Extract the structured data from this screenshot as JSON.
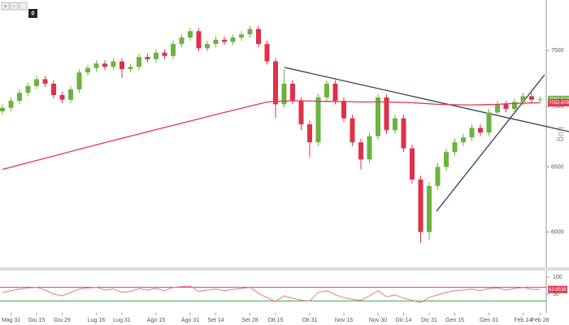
{
  "toolbar": {
    "badge": "0"
  },
  "chart_data": [
    {
      "type": "candlestick",
      "log_scale": true,
      "axis_label": "Log",
      "up_color": "#6cb33f",
      "down_color": "#e0304a",
      "categories": [
        null,
        "Mag 31",
        null,
        null,
        "Giu 15",
        null,
        null,
        "Giu 29",
        null,
        null,
        null,
        "Lug 16",
        null,
        null,
        "Lug 31",
        null,
        null,
        null,
        "Ago 15",
        null,
        null,
        null,
        "Ago 31",
        null,
        null,
        "Set 14",
        null,
        null,
        null,
        "Set 28",
        null,
        null,
        "Ott 15",
        null,
        null,
        null,
        "Ott 31",
        null,
        null,
        null,
        "Nov 15",
        null,
        null,
        null,
        "Nov 30",
        null,
        null,
        "Dic 14",
        null,
        null,
        "Dic 31",
        null,
        null,
        "Gen 15",
        null,
        null,
        null,
        "Gen 31",
        null,
        null,
        null,
        "Feb 14",
        null,
        "Feb 28"
      ],
      "open": [
        6960,
        6990,
        7050,
        7120,
        7180,
        7240,
        7200,
        7100,
        7060,
        7150,
        7300,
        7340,
        7380,
        7350,
        7400,
        7330,
        7350,
        7440,
        7420,
        7480,
        7450,
        7560,
        7620,
        7680,
        7520,
        7560,
        7600,
        7580,
        7620,
        7650,
        7700,
        7560,
        7400,
        7020,
        7200,
        7050,
        6850,
        6700,
        7080,
        7200,
        7050,
        6900,
        6700,
        6560,
        6750,
        7080,
        6800,
        6900,
        6650,
        6400,
        6000,
        6350,
        6500,
        6620,
        6700,
        6740,
        6820,
        6780,
        6950,
        7020,
        6980,
        7040,
        7090,
        7060
      ],
      "high": [
        7020,
        7080,
        7150,
        7210,
        7270,
        7270,
        7230,
        7130,
        7180,
        7330,
        7370,
        7410,
        7410,
        7430,
        7430,
        7380,
        7470,
        7470,
        7510,
        7510,
        7590,
        7650,
        7710,
        7710,
        7590,
        7630,
        7630,
        7650,
        7680,
        7730,
        7730,
        7590,
        7430,
        7330,
        7230,
        7080,
        6880,
        7110,
        7230,
        7230,
        7080,
        6930,
        6730,
        6780,
        7110,
        7110,
        6930,
        6930,
        6680,
        6430,
        6380,
        6530,
        6650,
        6730,
        6770,
        6850,
        6850,
        6980,
        7050,
        7050,
        7070,
        7120,
        7120,
        7090
      ],
      "low": [
        6930,
        6960,
        7020,
        7090,
        7150,
        7170,
        7070,
        7030,
        7030,
        7120,
        7270,
        7310,
        7320,
        7320,
        7250,
        7300,
        7320,
        7390,
        7390,
        7420,
        7420,
        7530,
        7590,
        7490,
        7490,
        7530,
        7550,
        7550,
        7590,
        7620,
        7530,
        7370,
        6900,
        6990,
        7020,
        6800,
        6580,
        6670,
        7050,
        7020,
        6870,
        6670,
        6480,
        6530,
        6720,
        6770,
        6770,
        6620,
        6370,
        5920,
        5940,
        6320,
        6470,
        6590,
        6670,
        6710,
        6750,
        6750,
        6920,
        6950,
        6950,
        7010,
        7030,
        7040
      ],
      "close": [
        6990,
        7050,
        7120,
        7180,
        7240,
        7200,
        7100,
        7060,
        7150,
        7300,
        7340,
        7380,
        7350,
        7400,
        7330,
        7350,
        7440,
        7420,
        7480,
        7450,
        7560,
        7620,
        7680,
        7520,
        7560,
        7600,
        7580,
        7620,
        7650,
        7700,
        7560,
        7400,
        7020,
        7200,
        7050,
        6850,
        6700,
        7080,
        7200,
        7050,
        6900,
        6700,
        6560,
        6750,
        7080,
        6800,
        6900,
        6650,
        6400,
        6000,
        6350,
        6500,
        6620,
        6700,
        6740,
        6820,
        6780,
        6950,
        7020,
        6980,
        7040,
        7090,
        7060,
        7062.5248
      ],
      "ma": {
        "color": "#e03a4e",
        "values": [
          6480,
          6498,
          6516,
          6534,
          6552,
          6570,
          6588,
          6606,
          6624,
          6643,
          6661,
          6679,
          6697,
          6715,
          6733,
          6751,
          6769,
          6787,
          6805,
          6823,
          6841,
          6859,
          6877,
          6895,
          6914,
          6932,
          6950,
          6968,
          6986,
          7004,
          7022,
          7040,
          7045,
          7048,
          7050,
          7050,
          7048,
          7046,
          7045,
          7044,
          7043,
          7042,
          7040,
          7040,
          7041,
          7040,
          7038,
          7036,
          7034,
          7030,
          7025,
          7020,
          7018,
          7016,
          7015,
          7015,
          7016,
          7018,
          7020,
          7024,
          7028,
          7030,
          7032,
          7033.6099
        ]
      },
      "ylim": [
        5740,
        7980
      ],
      "yticks": [
        6000,
        6500,
        7000,
        7500
      ]
    },
    {
      "type": "line",
      "color": "#e07a88",
      "values": [
        55,
        60,
        65,
        68,
        70,
        62,
        50,
        45,
        55,
        65,
        68,
        70,
        62,
        65,
        55,
        58,
        66,
        62,
        67,
        60,
        70,
        72,
        74,
        58,
        62,
        65,
        60,
        64,
        66,
        70,
        52,
        40,
        28,
        45,
        38,
        32,
        30,
        55,
        60,
        48,
        40,
        35,
        32,
        45,
        60,
        42,
        48,
        38,
        32,
        25,
        40,
        48,
        55,
        60,
        62,
        65,
        60,
        66,
        68,
        62,
        66,
        70,
        64,
        63.6538
      ],
      "levels": [
        {
          "value": 70,
          "color": "#e03a4e"
        },
        {
          "value": 30,
          "color": "#3aa84a"
        }
      ],
      "ylim": [
        0,
        100
      ],
      "yticks": [
        50,
        100
      ]
    }
  ]
}
